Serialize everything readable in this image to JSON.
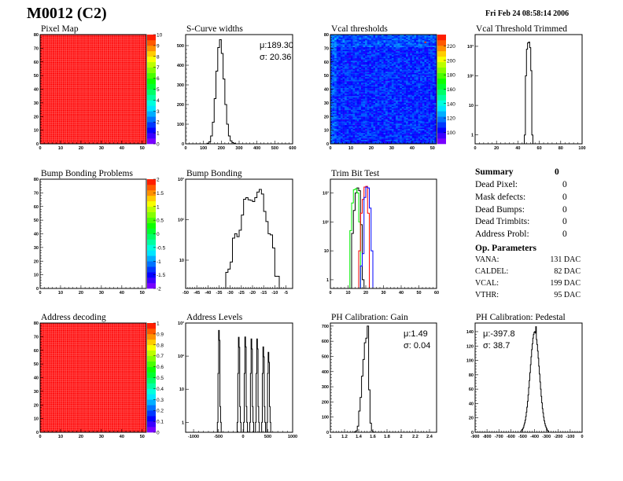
{
  "header": {
    "module": "M0012 (C2)",
    "timestamp": "Fri Feb 24 08:58:14 2006"
  },
  "summary": {
    "title": "Summary",
    "total": "0",
    "rows": [
      {
        "label": "Dead Pixel:",
        "value": "0"
      },
      {
        "label": "Mask defects:",
        "value": "0"
      },
      {
        "label": "Dead Bumps:",
        "value": "0"
      },
      {
        "label": "Dead Trimbits:",
        "value": "0"
      },
      {
        "label": "Address Probl:",
        "value": "0"
      }
    ],
    "op_title": "Op. Parameters",
    "op_rows": [
      {
        "label": "VANA:",
        "value": "131 DAC"
      },
      {
        "label": "CALDEL:",
        "value": "82 DAC"
      },
      {
        "label": "VCAL:",
        "value": "199 DAC"
      },
      {
        "label": "VTHR:",
        "value": "95 DAC"
      }
    ]
  },
  "colors": {
    "hist_line": "#000000",
    "trim_series": [
      "#000000",
      "#00ee00",
      "#ff0000",
      "#0000ff"
    ]
  },
  "chart_data": [
    {
      "id": "pixel-map",
      "type": "heatmap",
      "title": "Pixel Map",
      "xlim": [
        0,
        52
      ],
      "ylim": [
        0,
        80
      ],
      "xticks": [
        0,
        10,
        20,
        30,
        40,
        50
      ],
      "yticks": [
        0,
        10,
        20,
        30,
        40,
        50,
        60,
        70,
        80
      ],
      "zlim": [
        0,
        10
      ],
      "zticks": [
        0,
        1,
        2,
        3,
        4,
        5,
        6,
        7,
        8,
        9,
        10
      ],
      "fill": "uniform",
      "value": 10
    },
    {
      "id": "s-curve-widths",
      "type": "bar",
      "title": "S-Curve widths",
      "xlim": [
        0,
        600
      ],
      "ylim": [
        0,
        556
      ],
      "yscale": "linear",
      "xticks": [
        0,
        100,
        200,
        300,
        400,
        500,
        600
      ],
      "yticks": [
        0,
        100,
        200,
        300,
        400,
        500
      ],
      "bins": {
        "start": 120,
        "width": 10,
        "values": [
          2,
          10,
          40,
          110,
          230,
          370,
          490,
          530,
          460,
          330,
          200,
          100,
          40,
          15,
          6,
          2
        ]
      },
      "stats": [
        "μ:189.30",
        "σ: 20.36"
      ]
    },
    {
      "id": "vcal-thresholds",
      "type": "heatmap",
      "title": "Vcal thresholds",
      "xlim": [
        0,
        52
      ],
      "ylim": [
        0,
        80
      ],
      "xticks": [
        0,
        10,
        20,
        30,
        40,
        50
      ],
      "yticks": [
        0,
        10,
        20,
        30,
        40,
        50,
        60,
        70,
        80
      ],
      "zlim": [
        84,
        236
      ],
      "zticks": [
        100,
        120,
        140,
        160,
        180,
        200,
        220
      ],
      "fill": "noise",
      "mean": 108,
      "spread": 12,
      "hot_pixel": {
        "col": 46,
        "row": 74,
        "value": 230
      }
    },
    {
      "id": "vcal-threshold-trimmed",
      "type": "bar",
      "title": "Vcal Threshold Trimmed",
      "xlim": [
        0,
        100
      ],
      "ylim": [
        0.5,
        2500
      ],
      "yscale": "log",
      "xticks": [
        0,
        20,
        40,
        60,
        80,
        100
      ],
      "yticks": [
        1,
        10,
        100,
        1000
      ],
      "bins": {
        "start": 46,
        "width": 1,
        "values": [
          1,
          100,
          800,
          1300,
          1400,
          900,
          150,
          1
        ]
      }
    },
    {
      "id": "bump-bonding-problems",
      "type": "heatmap",
      "title": "Bump Bonding Problems",
      "xlim": [
        0,
        52
      ],
      "ylim": [
        0,
        80
      ],
      "xticks": [
        0,
        10,
        20,
        30,
        40,
        50
      ],
      "yticks": [
        0,
        10,
        20,
        30,
        40,
        50,
        60,
        70,
        80
      ],
      "zlim": [
        -2,
        2
      ],
      "zticks": [
        -2,
        -1.5,
        -1,
        -0.5,
        0,
        0.5,
        1,
        1.5,
        2
      ],
      "fill": "empty"
    },
    {
      "id": "bump-bonding",
      "type": "bar",
      "title": "Bump Bonding",
      "xlim": [
        -50,
        -2
      ],
      "ylim": [
        2,
        1000
      ],
      "yscale": "log",
      "xticks": [
        -50,
        -45,
        -40,
        -35,
        -30,
        -25,
        -20,
        -15,
        -10,
        -5
      ],
      "yticks": [
        10,
        100,
        1000
      ],
      "bins": {
        "start": -32,
        "width": 1,
        "values": [
          5,
          6,
          9,
          35,
          45,
          38,
          55,
          130,
          320,
          350,
          310,
          300,
          280,
          350,
          480,
          560,
          430,
          160,
          90,
          45,
          42,
          20,
          4,
          4
        ]
      }
    },
    {
      "id": "trim-bit-test",
      "type": "bar",
      "title": "Trim Bit Test",
      "xlim": [
        0,
        60
      ],
      "ylim": [
        0.5,
        3000
      ],
      "yscale": "log",
      "xticks": [
        0,
        10,
        20,
        30,
        40,
        50,
        60
      ],
      "yticks": [
        1,
        10,
        100,
        1000
      ],
      "series": [
        {
          "name": "trim-all",
          "start": 12,
          "width": 1,
          "values": [
            40,
            250,
            1000,
            1500,
            1200,
            80,
            1
          ]
        },
        {
          "name": "trim-bit-1",
          "start": 11,
          "width": 1,
          "values": [
            50,
            450,
            1300,
            1400,
            1000,
            100
          ]
        },
        {
          "name": "trim-bit-2",
          "start": 16,
          "width": 1,
          "values": [
            10,
            200,
            600,
            1600,
            1700,
            200
          ]
        },
        {
          "name": "trim-bit-3",
          "start": 17,
          "width": 1,
          "values": [
            3,
            8,
            700,
            1600,
            1500,
            300,
            10
          ]
        }
      ]
    },
    {
      "id": "address-decoding",
      "type": "heatmap",
      "title": "Address decoding",
      "xlim": [
        0,
        52
      ],
      "ylim": [
        0,
        80
      ],
      "xticks": [
        0,
        10,
        20,
        30,
        40,
        50
      ],
      "yticks": [
        0,
        10,
        20,
        30,
        40,
        50,
        60,
        70,
        80
      ],
      "zlim": [
        0,
        1
      ],
      "zticks": [
        0,
        0.1,
        0.2,
        0.3,
        0.4,
        0.5,
        0.6,
        0.7,
        0.8,
        0.9,
        1
      ],
      "fill": "uniform",
      "value": 1
    },
    {
      "id": "address-levels",
      "type": "bar",
      "title": "Address Levels",
      "xlim": [
        -1160,
        1000
      ],
      "ylim": [
        0.5,
        1000
      ],
      "yscale": "log",
      "xticks": [
        -1000,
        -500,
        0,
        500,
        1000
      ],
      "yticks": [
        1,
        10,
        100,
        1000
      ],
      "peaks": [
        {
          "x": -480,
          "count": 600
        },
        {
          "x": -80,
          "count": 370
        },
        {
          "x": 50,
          "count": 380
        },
        {
          "x": 175,
          "count": 330
        },
        {
          "x": 290,
          "count": 330
        },
        {
          "x": 415,
          "count": 190
        },
        {
          "x": 520,
          "count": 130
        }
      ]
    },
    {
      "id": "ph-calibration-gain",
      "type": "bar",
      "title": "PH Calibration: Gain",
      "xlim": [
        1,
        2.5
      ],
      "ylim": [
        0,
        720
      ],
      "yscale": "linear",
      "xticks": [
        1,
        1.2,
        1.4,
        1.6,
        1.8,
        2,
        2.2,
        2.4
      ],
      "yticks": [
        0,
        100,
        200,
        300,
        400,
        500,
        600,
        700
      ],
      "bins": {
        "start": 1.34,
        "width": 0.02,
        "values": [
          3,
          10,
          40,
          140,
          230,
          370,
          480,
          590,
          620,
          700,
          280,
          60,
          10,
          2
        ]
      },
      "stats": [
        "μ:1.49",
        "σ: 0.04"
      ]
    },
    {
      "id": "ph-calibration-pedestal",
      "type": "bar",
      "title": "PH Calibration: Pedestal",
      "xlim": [
        -900,
        0
      ],
      "ylim": [
        0,
        152
      ],
      "yscale": "linear",
      "xticks": [
        -900,
        -800,
        -700,
        -600,
        -500,
        -400,
        -300,
        -200,
        -100,
        0
      ],
      "yticks": [
        0,
        20,
        40,
        60,
        80,
        100,
        120,
        140
      ],
      "bins": {
        "start": -510,
        "width": 5,
        "values": [
          3,
          4,
          5,
          7,
          10,
          13,
          17,
          22,
          28,
          35,
          43,
          52,
          62,
          72,
          83,
          94,
          105,
          115,
          123,
          131,
          136,
          139,
          140,
          138,
          147,
          129,
          122,
          113,
          103,
          92,
          81,
          70,
          60,
          50,
          41,
          33,
          27,
          21,
          16,
          12,
          9,
          7,
          5,
          3,
          2
        ]
      },
      "stats": [
        "μ:-397.8",
        "σ: 38.7"
      ]
    }
  ]
}
